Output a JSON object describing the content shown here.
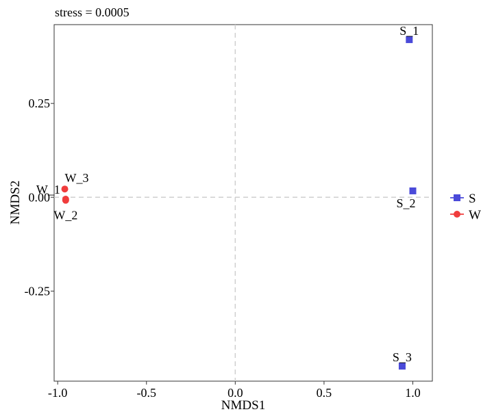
{
  "chart_data": {
    "type": "scatter",
    "subtitle": "stress = 0.0005",
    "xlabel": "NMDS1",
    "ylabel": "NMDS2",
    "xlim": [
      -1.02,
      1.11
    ],
    "ylim": [
      -0.49,
      0.46
    ],
    "x_ticks": [
      -1.0,
      -0.5,
      0.0,
      0.5,
      1.0
    ],
    "x_tick_labels": [
      "-1.0",
      "-0.5",
      "0.0",
      "0.5",
      "1.0"
    ],
    "y_ticks": [
      0.25,
      0.0,
      -0.25
    ],
    "y_tick_labels": [
      "0.25",
      "0.00",
      "-0.25"
    ],
    "reference_lines": {
      "x": 0,
      "y": 0,
      "style": "dashed"
    },
    "grid": false,
    "legend": {
      "position": "right"
    },
    "series": [
      {
        "name": "S",
        "color": "#4a4ad9",
        "marker": "square",
        "points": [
          {
            "label": "S_1",
            "x": 0.98,
            "y": 0.42,
            "label_pos": "top"
          },
          {
            "label": "S_2",
            "x": 1.0,
            "y": 0.017,
            "label_pos": "bottom-left"
          },
          {
            "label": "S_3",
            "x": 0.94,
            "y": -0.45,
            "label_pos": "top"
          }
        ]
      },
      {
        "name": "W",
        "color": "#f03c3c",
        "marker": "circle",
        "points": [
          {
            "label": "W_1",
            "x": -0.955,
            "y": -0.005,
            "label_pos": "top-left"
          },
          {
            "label": "W_3",
            "x": -0.96,
            "y": 0.022,
            "label_pos": "top-right"
          },
          {
            "label": "W_2",
            "x": -0.955,
            "y": -0.008,
            "label_pos": "bottom"
          }
        ]
      }
    ]
  }
}
